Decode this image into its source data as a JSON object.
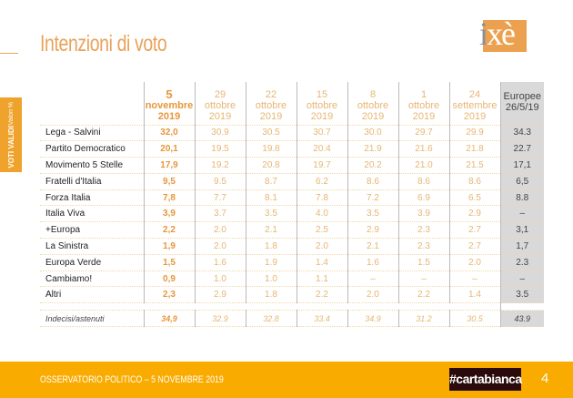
{
  "title": "Intenzioni di voto",
  "logo": {
    "text_i": "i",
    "text_rest": "xè"
  },
  "side": {
    "line1": "Valori %",
    "line2": "VOTI VALIDI"
  },
  "columns": [
    {
      "d": "5",
      "m": "novembre",
      "y": "2019"
    },
    {
      "d": "29",
      "m": "ottobre",
      "y": "2019"
    },
    {
      "d": "22",
      "m": "ottobre",
      "y": "2019"
    },
    {
      "d": "15",
      "m": "ottobre",
      "y": "2019"
    },
    {
      "d": "8",
      "m": "ottobre",
      "y": "2019"
    },
    {
      "d": "1",
      "m": "ottobre",
      "y": "2019"
    },
    {
      "d": "24",
      "m": "settembre",
      "y": "2019"
    }
  ],
  "europee": {
    "l1": "Europee",
    "l2": "26/5/19"
  },
  "rows": [
    {
      "party": "Lega - Salvini",
      "v": [
        "32,0",
        "30.9",
        "30.5",
        "30.7",
        "30.0",
        "29.7",
        "29.9"
      ],
      "eu": "34.3"
    },
    {
      "party": "Partito Democratico",
      "v": [
        "20,1",
        "19.5",
        "19.8",
        "20.4",
        "21.9",
        "21.6",
        "21.8"
      ],
      "eu": "22.7"
    },
    {
      "party": "Movimento 5 Stelle",
      "v": [
        "17,9",
        "19.2",
        "20.8",
        "19.7",
        "20.2",
        "21.0",
        "21.5"
      ],
      "eu": "17,1"
    },
    {
      "party": "Fratelli d'Italia",
      "v": [
        "9,5",
        "9.5",
        "8.7",
        "6.2",
        "8.6",
        "8.6",
        "8.6"
      ],
      "eu": "6,5"
    },
    {
      "party": "Forza Italia",
      "v": [
        "7,8",
        "7.7",
        "8.1",
        "7.8",
        "7.2",
        "6.9",
        "6.5"
      ],
      "eu": "8.8"
    },
    {
      "party": "Italia Viva",
      "v": [
        "3,9",
        "3.7",
        "3.5",
        "4.0",
        "3.5",
        "3.9",
        "2.9"
      ],
      "eu": "–"
    },
    {
      "party": "+Europa",
      "v": [
        "2,2",
        "2.0",
        "2.1",
        "2.5",
        "2.9",
        "2.3",
        "2.7"
      ],
      "eu": "3,1"
    },
    {
      "party": "La Sinistra",
      "v": [
        "1,9",
        "2.0",
        "1.8",
        "2.0",
        "2.1",
        "2.3",
        "2.7"
      ],
      "eu": "1,7"
    },
    {
      "party": "Europa Verde",
      "v": [
        "1,5",
        "1.6",
        "1.9",
        "1.4",
        "1.6",
        "1.5",
        "2.0"
      ],
      "eu": "2.3"
    },
    {
      "party": "Cambiamo!",
      "v": [
        "0,9",
        "1.0",
        "1.0",
        "1.1",
        "–",
        "–",
        "–"
      ],
      "eu": "–"
    },
    {
      "party": "Altri",
      "v": [
        "2,3",
        "2.9",
        "1.8",
        "2.2",
        "2.0",
        "2.2",
        "1.4"
      ],
      "eu": "3.5"
    }
  ],
  "undecided": {
    "party": "Indecisi/astenuti",
    "v": [
      "34,9",
      "32.9",
      "32.8",
      "33.4",
      "34.9",
      "31.2",
      "30.5"
    ],
    "eu": "43.9"
  },
  "footer": {
    "text": "OSSERVATORIO POLITICO – 5 NOVEMBRE 2019",
    "badge": "#cartabianca",
    "page": "4"
  }
}
